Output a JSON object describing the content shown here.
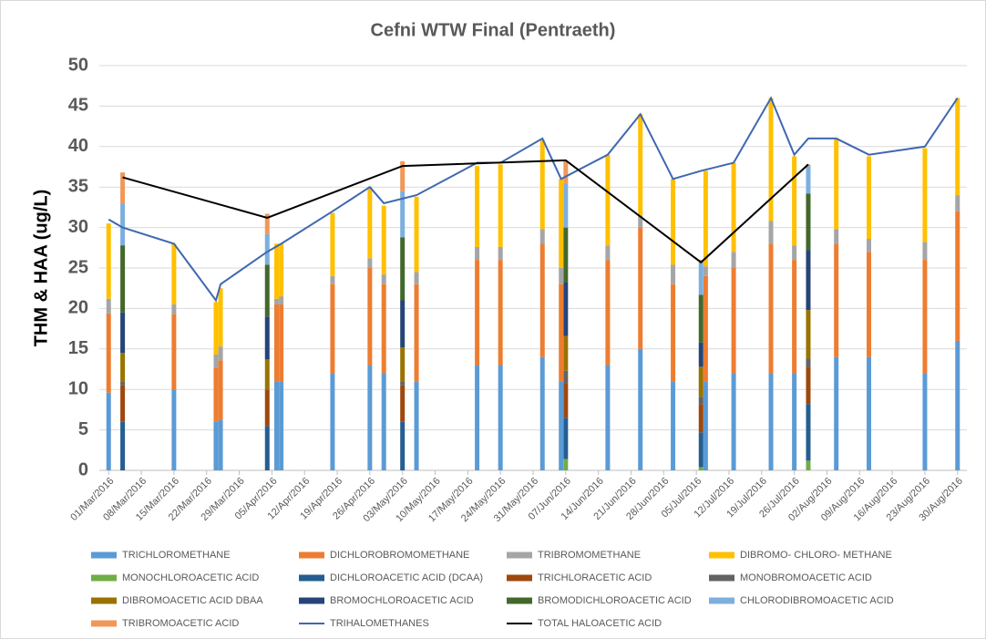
{
  "chart_data": {
    "type": "bar",
    "title": "Cefni WTW Final (Pentraeth)",
    "y_label": "THM & HAA (ug/L)",
    "xlim": [
      "28/Feb/2016",
      "01/Sep/2016"
    ],
    "xticks": [
      "01/Mar/2016",
      "08/Mar/2016",
      "15/Mar/2016",
      "22/Mar/2016",
      "29/Mar/2016",
      "05/Apr/2016",
      "12/Apr/2016",
      "19/Apr/2016",
      "26/Apr/2016",
      "03/May/2016",
      "10/May/2016",
      "17/May/2016",
      "24/May/2016",
      "31/May/2016",
      "07/Jun/2016",
      "14/Jun/2016",
      "21/Jun/2016",
      "28/Jun/2016",
      "05/Jul/2016",
      "12/Jul/2016",
      "19/Jul/2016",
      "26/Jul/2016",
      "02/Aug/2016",
      "09/Aug/2016",
      "16/Aug/2016",
      "23/Aug/2016",
      "30/Aug/2016"
    ],
    "ylim": [
      0,
      50
    ],
    "yticks": [
      0,
      5,
      10,
      15,
      20,
      25,
      30,
      35,
      40,
      45,
      50
    ],
    "grid": true,
    "series": [
      {
        "name": "TRICHLOROMETHANE",
        "color": "#5b9bd5",
        "type": "bar",
        "x": [
          "01/Mar/2016",
          "15/Mar/2016",
          "24/Mar/2016",
          "25/Mar/2016",
          "06/Apr/2016",
          "07/Apr/2016",
          "18/Apr/2016",
          "26/Apr/2016",
          "29/Apr/2016",
          "06/May/2016",
          "19/May/2016",
          "24/May/2016",
          "02/Jun/2016",
          "06/Jun/2016",
          "16/Jun/2016",
          "23/Jun/2016",
          "30/Jun/2016",
          "07/Jul/2016",
          "13/Jul/2016",
          "21/Jul/2016",
          "26/Jul/2016",
          "04/Aug/2016",
          "11/Aug/2016",
          "23/Aug/2016",
          "30/Aug/2016"
        ],
        "values": [
          9.6,
          10,
          6,
          6.2,
          11,
          11,
          12,
          13,
          12,
          11,
          13,
          13,
          14,
          11,
          13,
          15,
          11,
          11,
          12,
          12,
          12,
          14,
          14,
          12,
          16
        ]
      },
      {
        "name": "DICHLOROBROMOMETHANE",
        "color": "#ed7d31",
        "type": "bar",
        "x": [
          "01/Mar/2016",
          "15/Mar/2016",
          "24/Mar/2016",
          "25/Mar/2016",
          "06/Apr/2016",
          "07/Apr/2016",
          "18/Apr/2016",
          "26/Apr/2016",
          "29/Apr/2016",
          "06/May/2016",
          "19/May/2016",
          "24/May/2016",
          "02/Jun/2016",
          "06/Jun/2016",
          "16/Jun/2016",
          "23/Jun/2016",
          "30/Jun/2016",
          "07/Jul/2016",
          "13/Jul/2016",
          "21/Jul/2016",
          "26/Jul/2016",
          "04/Aug/2016",
          "11/Aug/2016",
          "23/Aug/2016",
          "30/Aug/2016"
        ],
        "values": [
          9.8,
          9.3,
          6.7,
          7.4,
          9.5,
          9.5,
          11,
          12,
          11,
          12,
          13,
          13,
          14,
          12,
          13,
          15,
          12,
          13,
          13,
          16,
          14,
          14,
          13,
          14,
          16
        ]
      },
      {
        "name": "TRIBROMOMETHANE",
        "color": "#a5a5a5",
        "type": "bar",
        "x": [
          "01/Mar/2016",
          "15/Mar/2016",
          "24/Mar/2016",
          "25/Mar/2016",
          "06/Apr/2016",
          "07/Apr/2016",
          "18/Apr/2016",
          "26/Apr/2016",
          "29/Apr/2016",
          "06/May/2016",
          "19/May/2016",
          "24/May/2016",
          "02/Jun/2016",
          "06/Jun/2016",
          "16/Jun/2016",
          "23/Jun/2016",
          "30/Jun/2016",
          "07/Jul/2016",
          "13/Jul/2016",
          "21/Jul/2016",
          "26/Jul/2016",
          "04/Aug/2016",
          "11/Aug/2016",
          "23/Aug/2016",
          "30/Aug/2016"
        ],
        "values": [
          1.8,
          1.2,
          1.6,
          1.7,
          0.7,
          1,
          1,
          1.2,
          1.2,
          1.5,
          1.6,
          1.6,
          1.8,
          2,
          1.8,
          1.5,
          2.4,
          1.2,
          2,
          2.8,
          1.8,
          1.8,
          1.6,
          2.2,
          2
        ]
      },
      {
        "name": "DIBROMO- CHLORO- METHANE",
        "color": "#ffc000",
        "type": "bar",
        "x": [
          "01/Mar/2016",
          "15/Mar/2016",
          "24/Mar/2016",
          "25/Mar/2016",
          "06/Apr/2016",
          "07/Apr/2016",
          "18/Apr/2016",
          "26/Apr/2016",
          "29/Apr/2016",
          "06/May/2016",
          "19/May/2016",
          "24/May/2016",
          "02/Jun/2016",
          "06/Jun/2016",
          "16/Jun/2016",
          "23/Jun/2016",
          "30/Jun/2016",
          "07/Jul/2016",
          "13/Jul/2016",
          "21/Jul/2016",
          "26/Jul/2016",
          "04/Aug/2016",
          "11/Aug/2016",
          "23/Aug/2016",
          "30/Aug/2016"
        ],
        "values": [
          9.3,
          7.5,
          6.5,
          7.2,
          6.8,
          6.5,
          7.8,
          8.8,
          8.5,
          9.3,
          10,
          10.2,
          11,
          11,
          11.2,
          12.5,
          10.6,
          11.8,
          11,
          15.2,
          11,
          11.2,
          10.2,
          11.6,
          12
        ]
      },
      {
        "name": "MONOCHLOROACETIC ACID",
        "color": "#70ad47",
        "type": "bar",
        "x": [
          "04/Mar/2016",
          "04/Apr/2016",
          "03/May/2016",
          "07/Jun/2016",
          "06/Jul/2016",
          "29/Jul/2016"
        ],
        "values": [
          0,
          0,
          0,
          1.4,
          0.4,
          1.2
        ]
      },
      {
        "name": "DICHLOROACETIC ACID (DCAA)",
        "color": "#255e91",
        "type": "bar",
        "x": [
          "04/Mar/2016",
          "04/Apr/2016",
          "03/May/2016",
          "07/Jun/2016",
          "06/Jul/2016",
          "29/Jul/2016"
        ],
        "values": [
          6,
          5.5,
          6,
          5.1,
          4.3,
          7
        ]
      },
      {
        "name": "TRICHLORACETIC ACID",
        "color": "#9e480e",
        "type": "bar",
        "x": [
          "04/Mar/2016",
          "04/Apr/2016",
          "03/May/2016",
          "07/Jun/2016",
          "06/Jul/2016",
          "29/Jul/2016"
        ],
        "values": [
          4.5,
          4.5,
          4.5,
          4.3,
          3.5,
          4.6
        ]
      },
      {
        "name": "MONOBROMOACETIC ACID",
        "color": "#636363",
        "type": "bar",
        "x": [
          "04/Mar/2016",
          "04/Apr/2016",
          "03/May/2016",
          "07/Jun/2016",
          "06/Jul/2016",
          "29/Jul/2016"
        ],
        "values": [
          0.5,
          0,
          0.5,
          1.5,
          0.9,
          1
        ]
      },
      {
        "name": "DIBROMOACETIC ACID DBAA",
        "color": "#997300",
        "type": "bar",
        "x": [
          "04/Mar/2016",
          "04/Apr/2016",
          "03/May/2016",
          "07/Jun/2016",
          "06/Jul/2016",
          "29/Jul/2016"
        ],
        "values": [
          3.5,
          3.7,
          4.2,
          4.3,
          3.7,
          6
        ]
      },
      {
        "name": "BROMOCHLOROACETIC ACID",
        "color": "#264478",
        "type": "bar",
        "x": [
          "04/Mar/2016",
          "04/Apr/2016",
          "03/May/2016",
          "07/Jun/2016",
          "06/Jul/2016",
          "29/Jul/2016"
        ],
        "values": [
          5,
          5.3,
          5.8,
          6.6,
          3,
          7.4
        ]
      },
      {
        "name": "BROMODICHLOROACETIC ACID",
        "color": "#43682b",
        "type": "bar",
        "x": [
          "04/Mar/2016",
          "04/Apr/2016",
          "03/May/2016",
          "07/Jun/2016",
          "06/Jul/2016",
          "29/Jul/2016"
        ],
        "values": [
          8.3,
          6.4,
          7.8,
          6.8,
          5.9,
          7
        ]
      },
      {
        "name": "CHLORODIBROMOACETIC ACID",
        "color": "#7cafdd",
        "type": "bar",
        "x": [
          "04/Mar/2016",
          "04/Apr/2016",
          "03/May/2016",
          "07/Jun/2016",
          "06/Jul/2016",
          "29/Jul/2016"
        ],
        "values": [
          5.2,
          3.8,
          5.7,
          5.5,
          4.1,
          3.4
        ]
      },
      {
        "name": "TRIBROMOACETIC ACID",
        "color": "#f1975a",
        "type": "bar",
        "x": [
          "04/Mar/2016",
          "04/Apr/2016",
          "03/May/2016",
          "07/Jun/2016",
          "06/Jul/2016",
          "29/Jul/2016"
        ],
        "values": [
          3.8,
          2.5,
          3.7,
          2.7,
          0.2,
          0.2
        ]
      },
      {
        "name": "TRIHALOMETHANES",
        "color": "#4068b0",
        "type": "line",
        "x": [
          "01/Mar/2016",
          "04/Mar/2016",
          "15/Mar/2016",
          "24/Mar/2016",
          "25/Mar/2016",
          "04/Apr/2016",
          "07/Apr/2016",
          "18/Apr/2016",
          "26/Apr/2016",
          "29/Apr/2016",
          "06/May/2016",
          "19/May/2016",
          "24/May/2016",
          "02/Jun/2016",
          "06/Jun/2016",
          "16/Jun/2016",
          "23/Jun/2016",
          "30/Jun/2016",
          "06/Jul/2016",
          "13/Jul/2016",
          "21/Jul/2016",
          "26/Jul/2016",
          "29/Jul/2016",
          "04/Aug/2016",
          "11/Aug/2016",
          "23/Aug/2016",
          "30/Aug/2016"
        ],
        "values": [
          31,
          30,
          28,
          21,
          23,
          27,
          28,
          32,
          35,
          33,
          34,
          38,
          38,
          41,
          36,
          39,
          44,
          36,
          37,
          38,
          46,
          39,
          41,
          41,
          39,
          40,
          46
        ]
      },
      {
        "name": "TOTAL HALOACETIC ACID",
        "color": "#000000",
        "type": "line",
        "x": [
          "04/Mar/2016",
          "04/Apr/2016",
          "03/May/2016",
          "07/Jun/2016",
          "06/Jul/2016",
          "29/Jul/2016"
        ],
        "values": [
          36.2,
          31.2,
          37.6,
          38.3,
          25.7,
          37.8
        ]
      }
    ]
  }
}
